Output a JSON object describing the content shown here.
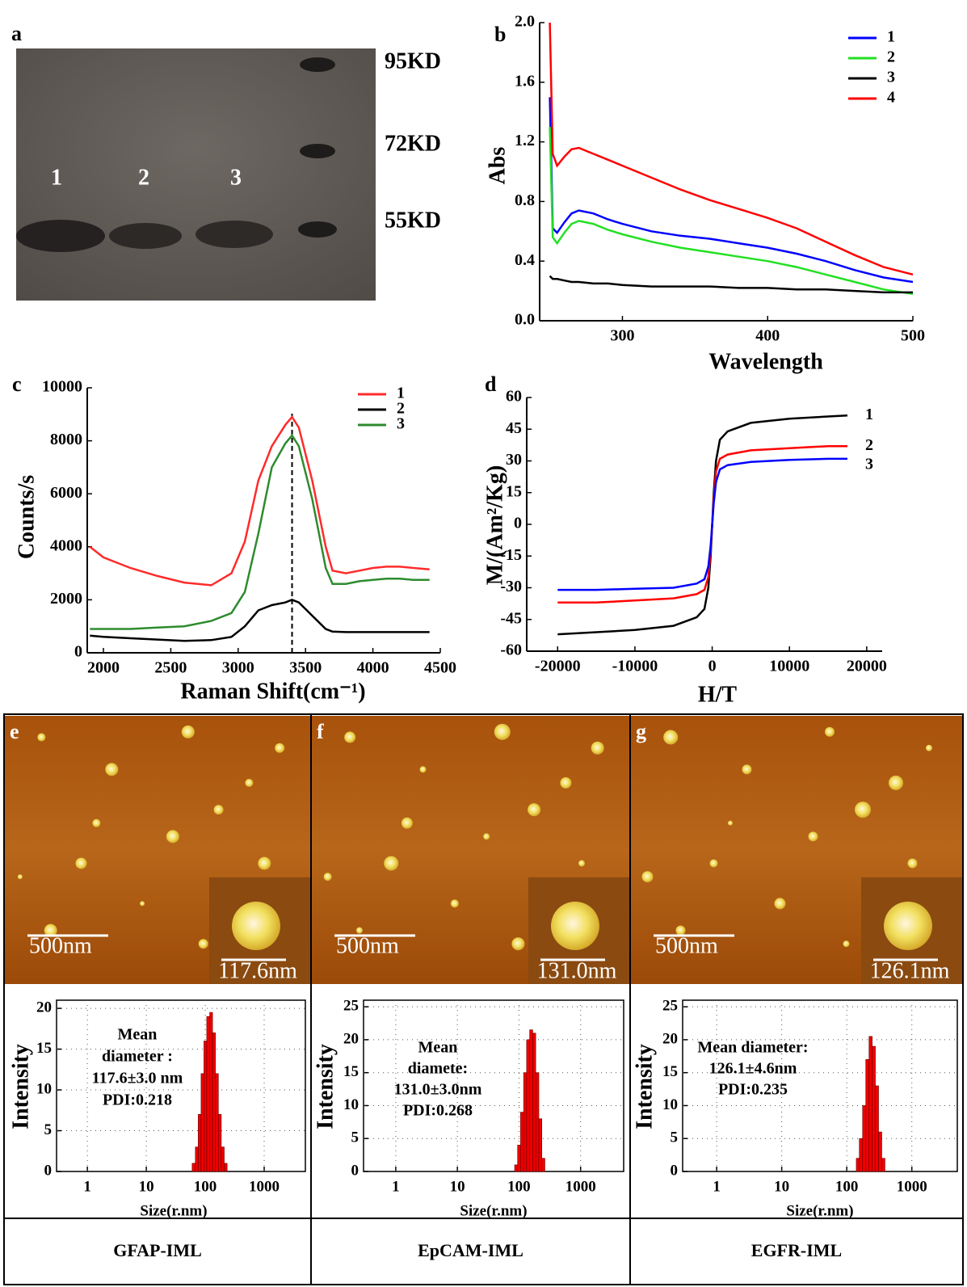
{
  "gel": {
    "label": "a",
    "lanes": [
      "1",
      "2",
      "3"
    ],
    "markers": [
      "95KD",
      "72KD",
      "55KD"
    ]
  },
  "afm": [
    {
      "label": "e",
      "scale_bar": "500nm",
      "inset_scale_bar": "117.6nm",
      "name": "GFAP-IML"
    },
    {
      "label": "f",
      "scale_bar": "500nm",
      "inset_scale_bar": "131.0nm",
      "name": "EpCAM-IML"
    },
    {
      "label": "g",
      "scale_bar": "500nm",
      "inset_scale_bar": "126.1nm",
      "name": "EGFR-IML"
    }
  ],
  "chart_data": [
    {
      "type": "line",
      "panel": "b",
      "xlabel": "Wavelength",
      "ylabel": "Abs",
      "x": [
        250,
        252,
        255,
        260,
        265,
        270,
        280,
        290,
        300,
        320,
        340,
        360,
        380,
        400,
        420,
        440,
        460,
        480,
        500
      ],
      "series": [
        {
          "name": "1",
          "color": "#0000ff",
          "values": [
            1.5,
            0.62,
            0.59,
            0.66,
            0.72,
            0.74,
            0.72,
            0.68,
            0.65,
            0.6,
            0.57,
            0.55,
            0.52,
            0.49,
            0.45,
            0.4,
            0.34,
            0.29,
            0.26
          ]
        },
        {
          "name": "2",
          "color": "#22e022",
          "values": [
            1.3,
            0.56,
            0.52,
            0.59,
            0.65,
            0.67,
            0.65,
            0.61,
            0.58,
            0.53,
            0.49,
            0.46,
            0.43,
            0.4,
            0.36,
            0.31,
            0.26,
            0.21,
            0.18
          ]
        },
        {
          "name": "3",
          "color": "#000000",
          "values": [
            0.3,
            0.28,
            0.28,
            0.27,
            0.26,
            0.26,
            0.25,
            0.25,
            0.24,
            0.23,
            0.23,
            0.23,
            0.22,
            0.22,
            0.21,
            0.21,
            0.2,
            0.19,
            0.19
          ]
        },
        {
          "name": "4",
          "color": "#ff0000",
          "values": [
            2.0,
            1.12,
            1.04,
            1.1,
            1.15,
            1.16,
            1.12,
            1.08,
            1.04,
            0.96,
            0.88,
            0.81,
            0.75,
            0.69,
            0.62,
            0.53,
            0.44,
            0.36,
            0.31
          ]
        }
      ],
      "xlim": [
        243,
        500
      ],
      "xticks": [
        300,
        400,
        500
      ],
      "ylim": [
        0,
        2.0
      ],
      "yticks": [
        {
          "value": 0,
          "label": "0.0"
        },
        {
          "value": 0.4,
          "label": "0.4"
        },
        {
          "value": 0.8,
          "label": "0.8"
        },
        {
          "value": 1.2,
          "label": "1.2"
        },
        {
          "value": 1.6,
          "label": "1.6"
        },
        {
          "value": 2.0,
          "label": "2.0"
        }
      ],
      "legend": "upper right"
    },
    {
      "type": "line",
      "panel": "c",
      "xlabel": "Raman Shift(cm⁻¹)",
      "ylabel": "Counts/s",
      "x": [
        1900,
        2000,
        2200,
        2400,
        2600,
        2800,
        2950,
        3050,
        3150,
        3250,
        3350,
        3400,
        3450,
        3550,
        3650,
        3700,
        3800,
        3900,
        4000,
        4100,
        4200,
        4300,
        4420
      ],
      "series": [
        {
          "name": "1",
          "color": "#ff2b2b",
          "values": [
            4000,
            3600,
            3200,
            2900,
            2650,
            2550,
            3000,
            4200,
            6500,
            7800,
            8600,
            8900,
            8500,
            6500,
            4000,
            3100,
            3000,
            3100,
            3200,
            3250,
            3250,
            3200,
            3150
          ]
        },
        {
          "name": "2",
          "color": "#000000",
          "values": [
            650,
            600,
            550,
            500,
            450,
            480,
            600,
            1000,
            1600,
            1800,
            1900,
            2000,
            1900,
            1400,
            900,
            800,
            780,
            780,
            780,
            780,
            780,
            780,
            780
          ]
        },
        {
          "name": "3",
          "color": "#2e8b2e",
          "values": [
            900,
            900,
            900,
            950,
            1000,
            1200,
            1500,
            2300,
            4500,
            7000,
            7900,
            8200,
            7800,
            5800,
            3200,
            2600,
            2600,
            2700,
            2750,
            2800,
            2800,
            2750,
            2750
          ]
        }
      ],
      "vline": 3400,
      "xlim": [
        1880,
        4500
      ],
      "xticks": [
        2000,
        2500,
        3000,
        3500,
        4000,
        4500
      ],
      "ylim": [
        0,
        10000
      ],
      "yticks": [
        0,
        2000,
        4000,
        6000,
        8000,
        10000
      ],
      "legend": "upper right"
    },
    {
      "type": "line",
      "panel": "d",
      "xlabel": "H/T",
      "ylabel": "M/(Am²/Kg)",
      "x": [
        -20000,
        -15000,
        -10000,
        -5000,
        -2000,
        -1000,
        -500,
        -200,
        0,
        200,
        500,
        1000,
        2000,
        5000,
        10000,
        15000,
        17500
      ],
      "series": [
        {
          "name": "1",
          "color": "#000000",
          "values": [
            -52,
            -51,
            -50,
            -48,
            -44,
            -40,
            -30,
            -15,
            0,
            15,
            30,
            40,
            44,
            48,
            50,
            51,
            51.5
          ]
        },
        {
          "name": "2",
          "color": "#ff0000",
          "values": [
            -37,
            -37,
            -36,
            -35,
            -33,
            -31,
            -25,
            -12,
            0,
            12,
            25,
            31,
            33,
            35,
            36,
            37,
            37
          ]
        },
        {
          "name": "3",
          "color": "#0000ff",
          "values": [
            -31,
            -31,
            -30.5,
            -30,
            -28,
            -26,
            -20,
            -10,
            0,
            10,
            20,
            26,
            28,
            29.5,
            30.5,
            31,
            31
          ]
        }
      ],
      "xlim": [
        -24000,
        22000
      ],
      "xticks": [
        -20000,
        -10000,
        0,
        10000,
        20000
      ],
      "ylim": [
        -60,
        60
      ],
      "yticks": [
        -60,
        -45,
        -30,
        -15,
        0,
        15,
        30,
        45,
        60
      ]
    },
    {
      "type": "histogram",
      "xlabel": "Size(r.nm)",
      "ylabel": "Intensity",
      "color": "#ee0000",
      "xscale": "log",
      "bins": [
        60,
        68,
        76,
        85,
        95,
        106,
        119,
        133,
        149,
        167,
        187,
        210,
        235
      ],
      "values": [
        1,
        3,
        7,
        12,
        16,
        19,
        19.5,
        17,
        12,
        7,
        3,
        1
      ],
      "annotation": [
        "Mean",
        "diameter :",
        "117.6±3.0 nm",
        "PDI:0.218"
      ],
      "xlim": [
        0.3,
        5000
      ],
      "xticks": [
        1,
        10,
        100,
        1000
      ],
      "ylim": [
        0,
        21
      ],
      "yticks": [
        0,
        5,
        10,
        15,
        20
      ],
      "grid": true
    },
    {
      "type": "histogram",
      "xlabel": "Size(r.nm)",
      "ylabel": "Intensity",
      "color": "#ee0000",
      "xscale": "log",
      "bins": [
        85,
        95,
        106,
        119,
        133,
        149,
        167,
        187,
        210,
        235,
        263
      ],
      "values": [
        1,
        4,
        9,
        15,
        20,
        21.5,
        21,
        15,
        8,
        2
      ],
      "annotation": [
        "Mean",
        "diamete:",
        "131.0±3.0nm",
        "PDI:0.268"
      ],
      "xlim": [
        0.3,
        5000
      ],
      "xticks": [
        1,
        10,
        100,
        1000
      ],
      "ylim": [
        0,
        26
      ],
      "yticks": [
        0,
        5,
        10,
        15,
        20,
        25
      ],
      "grid": true
    },
    {
      "type": "histogram",
      "xlabel": "Size(r.nm)",
      "ylabel": "Intensity",
      "color": "#ee0000",
      "xscale": "log",
      "bins": [
        140,
        156,
        175,
        196,
        220,
        246,
        275,
        308,
        345,
        386
      ],
      "values": [
        2,
        5,
        10,
        17,
        20.5,
        19,
        13,
        6,
        2
      ],
      "annotation": [
        "Mean diameter:",
        "126.1±4.6nm",
        "PDI:0.235"
      ],
      "xlim": [
        0.3,
        5000
      ],
      "xticks": [
        1,
        10,
        100,
        1000
      ],
      "ylim": [
        0,
        26
      ],
      "yticks": [
        0,
        5,
        10,
        15,
        20,
        25
      ],
      "grid": true
    }
  ]
}
